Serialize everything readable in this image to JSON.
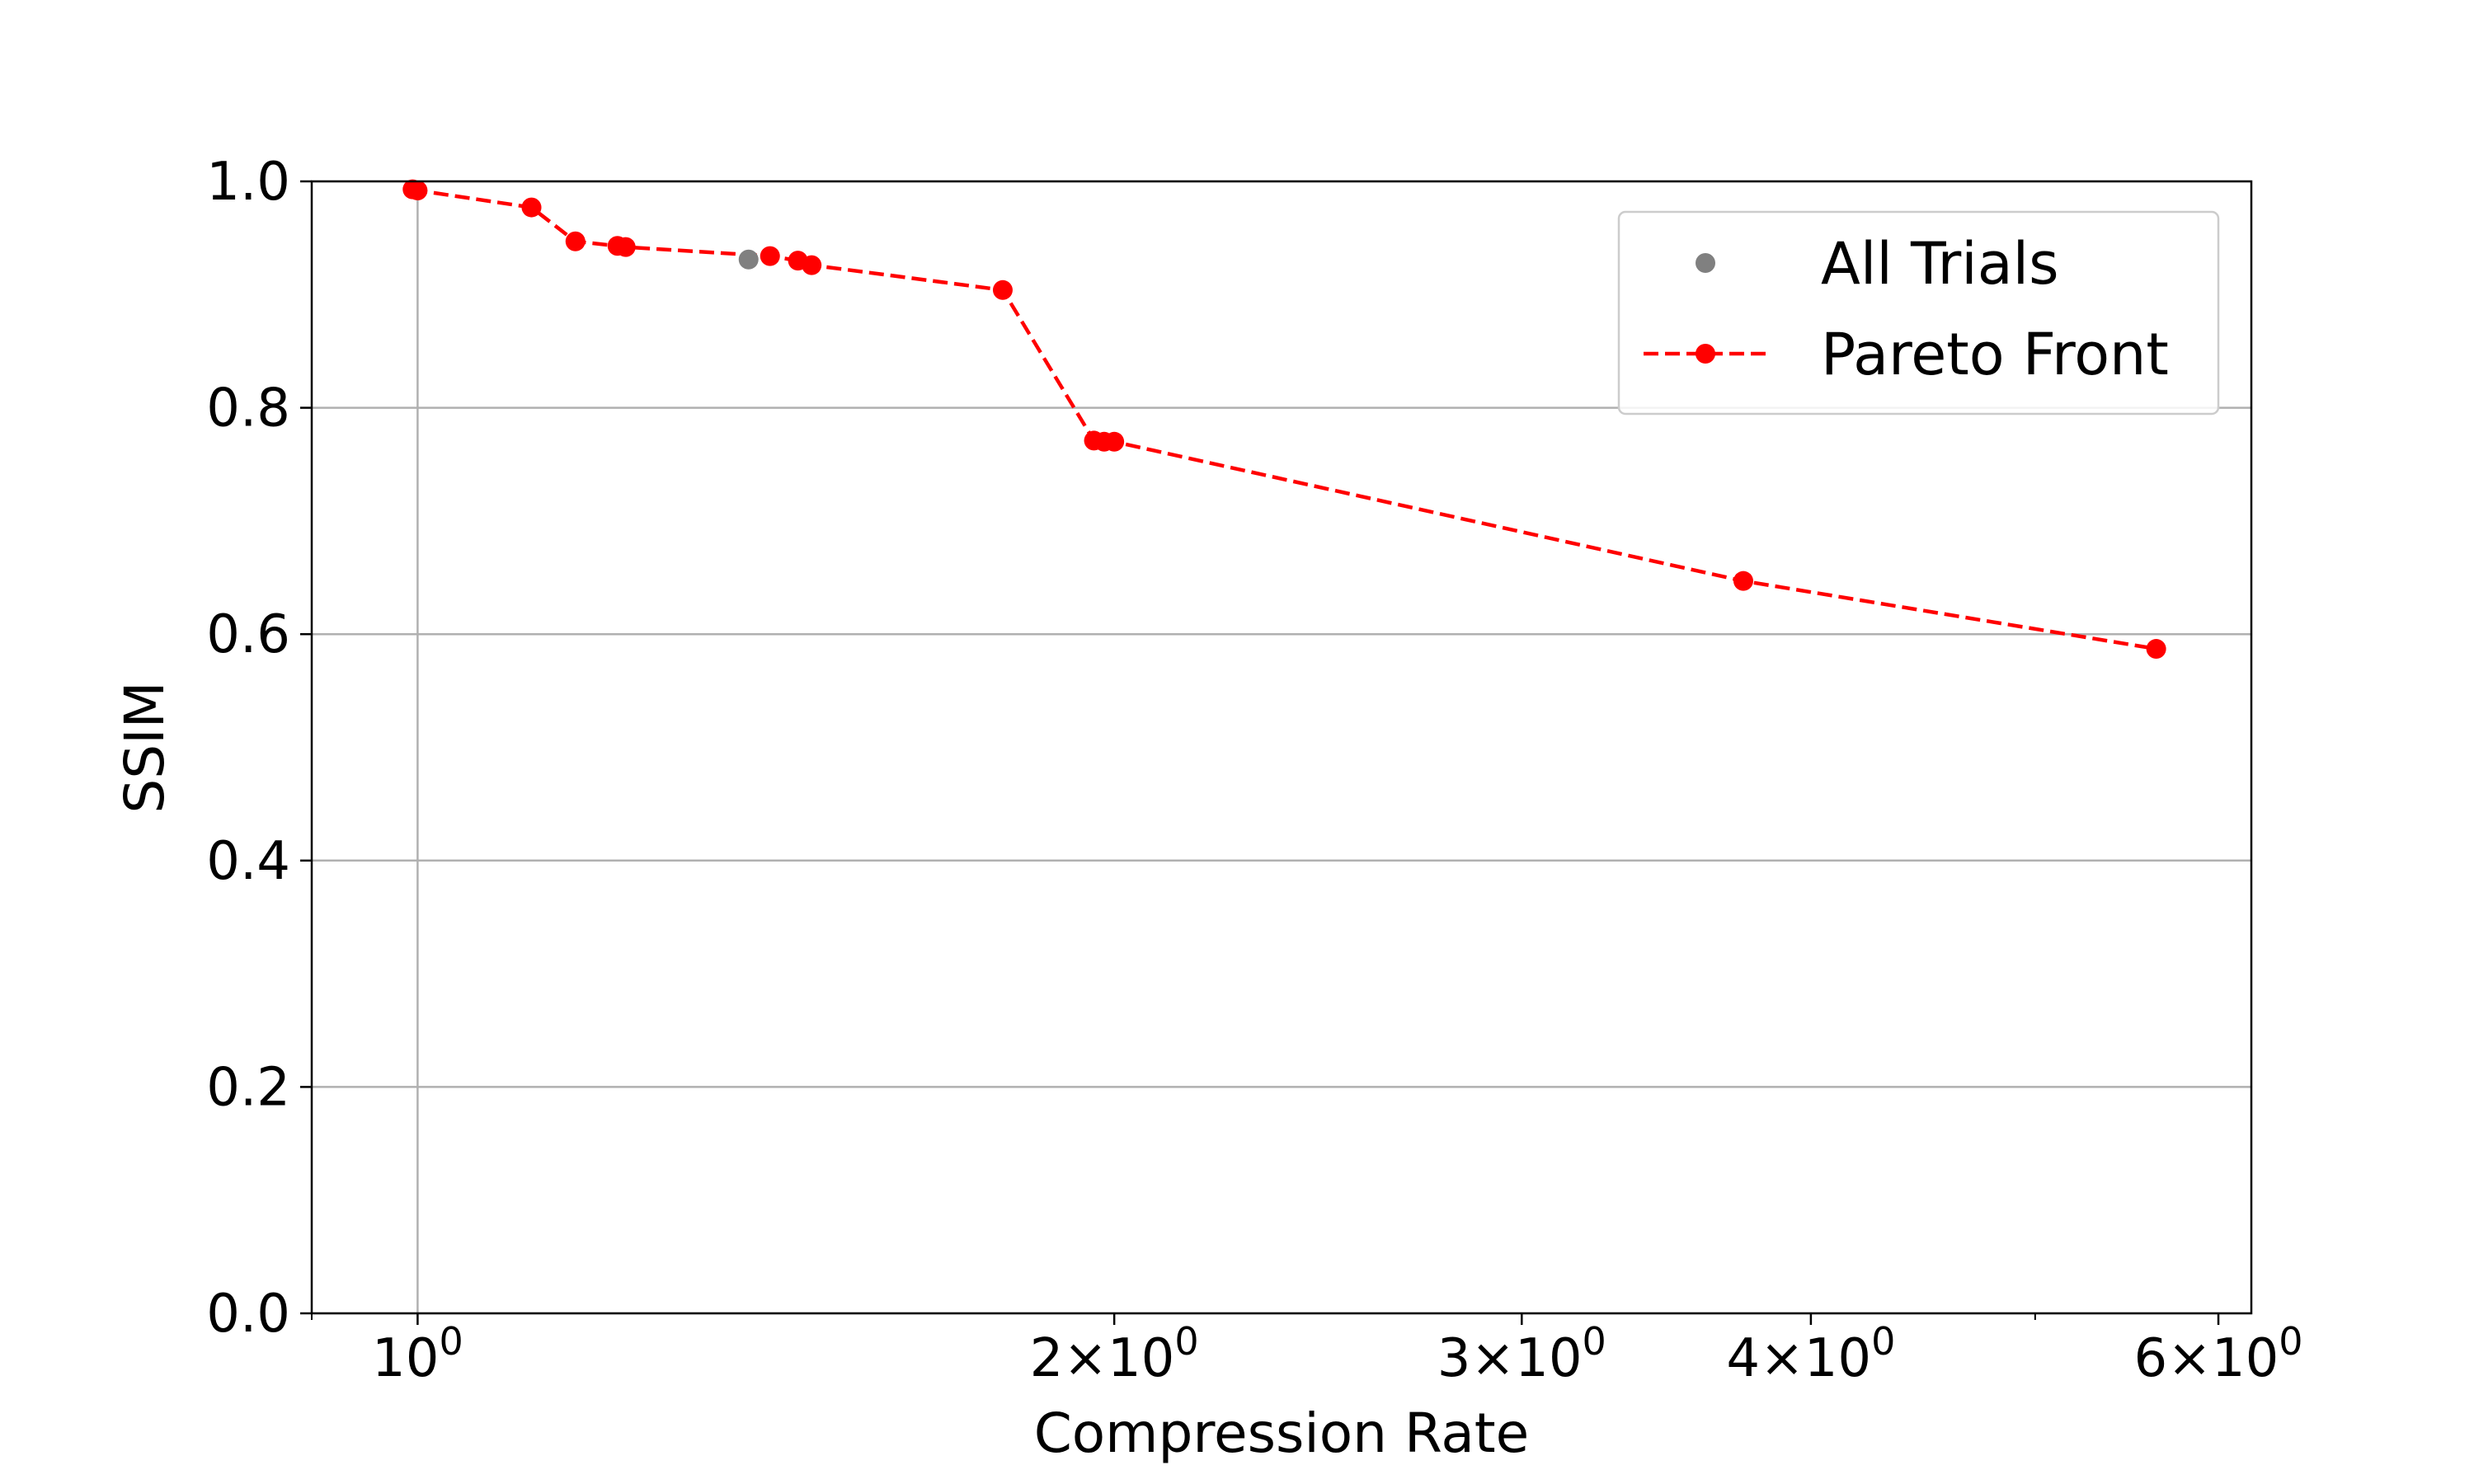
{
  "chart_data": {
    "type": "scatter",
    "title": "",
    "xlabel": "Compression Rate",
    "ylabel": "SSIM",
    "xscale": "log",
    "xlim": [
      0.9,
      6.2
    ],
    "ylim": [
      0.0,
      1.0
    ],
    "grid": true,
    "legend_position": "top-right",
    "x_ticks": [
      {
        "value": 1,
        "base": "10",
        "exp": "0",
        "mantissa": ""
      },
      {
        "value": 2,
        "base": "10",
        "exp": "0",
        "mantissa": "2×"
      },
      {
        "value": 3,
        "base": "10",
        "exp": "0",
        "mantissa": "3×"
      },
      {
        "value": 4,
        "base": "10",
        "exp": "0",
        "mantissa": "4×"
      },
      {
        "value": 6,
        "base": "10",
        "exp": "0",
        "mantissa": "6×"
      }
    ],
    "x_minor_ticks": [
      5
    ],
    "y_ticks": [
      {
        "value": 0.0,
        "label": "0.0"
      },
      {
        "value": 0.2,
        "label": "0.2"
      },
      {
        "value": 0.4,
        "label": "0.4"
      },
      {
        "value": 0.6,
        "label": "0.6"
      },
      {
        "value": 0.8,
        "label": "0.8"
      },
      {
        "value": 1.0,
        "label": "1.0"
      }
    ],
    "series": [
      {
        "name": "All Trials",
        "style": "markers",
        "color": "#808080",
        "points": [
          {
            "x": 1.39,
            "y": 0.931
          }
        ]
      },
      {
        "name": "Pareto Front",
        "style": "dashed-line-markers",
        "color": "#ff0000",
        "points": [
          {
            "x": 0.995,
            "y": 0.993
          },
          {
            "x": 1.0,
            "y": 0.992
          },
          {
            "x": 1.12,
            "y": 0.977
          },
          {
            "x": 1.17,
            "y": 0.947
          },
          {
            "x": 1.22,
            "y": 0.943
          },
          {
            "x": 1.23,
            "y": 0.942
          },
          {
            "x": 1.42,
            "y": 0.934
          },
          {
            "x": 1.46,
            "y": 0.93
          },
          {
            "x": 1.48,
            "y": 0.926
          },
          {
            "x": 1.79,
            "y": 0.904
          },
          {
            "x": 1.96,
            "y": 0.771
          },
          {
            "x": 1.98,
            "y": 0.77
          },
          {
            "x": 2.0,
            "y": 0.77
          },
          {
            "x": 3.74,
            "y": 0.647
          },
          {
            "x": 5.64,
            "y": 0.587
          }
        ]
      }
    ]
  }
}
